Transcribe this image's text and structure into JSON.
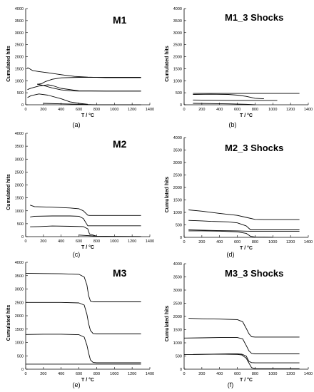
{
  "figure": {
    "panels": [
      {
        "letter": "(a)",
        "title": "M1"
      },
      {
        "letter": "(b)",
        "title": "M1_3 Shocks"
      },
      {
        "letter": "(c)",
        "title": "M2"
      },
      {
        "letter": "(d)",
        "title": "M2_3 Shocks"
      },
      {
        "letter": "(e)",
        "title": "M3"
      },
      {
        "letter": "(f)",
        "title": "M3_3 Shocks"
      }
    ]
  },
  "chart_data": [
    {
      "type": "line",
      "title": "M1",
      "panel_label": "(a)",
      "xlabel": "T / °C",
      "ylabel": "Cumulated hits",
      "xlim": [
        0,
        1400
      ],
      "ylim": [
        0,
        4000
      ],
      "xticks": [
        0,
        200,
        400,
        600,
        800,
        1000,
        1200,
        1400
      ],
      "yticks": [
        0,
        500,
        1000,
        1500,
        2000,
        2500,
        3000,
        3500,
        4000
      ],
      "grid": false,
      "series": [
        {
          "x": [
            20,
            80,
            150,
            250,
            400,
            550,
            700,
            900,
            1100,
            1300
          ],
          "y": [
            1550,
            1420,
            1380,
            1330,
            1250,
            1180,
            1150,
            1130,
            1130,
            1130
          ]
        },
        {
          "x": [
            130,
            180,
            220,
            300,
            400,
            600,
            900,
            1300
          ],
          "y": [
            850,
            880,
            960,
            1060,
            1120,
            1140,
            1140,
            1140
          ]
        },
        {
          "x": [
            20,
            60,
            150,
            250,
            300,
            400,
            600,
            900,
            1300
          ],
          "y": [
            630,
            690,
            780,
            830,
            800,
            680,
            580,
            570,
            570
          ]
        },
        {
          "x": [
            130,
            200,
            300,
            400,
            500,
            600,
            900,
            1300
          ],
          "y": [
            860,
            800,
            700,
            620,
            580,
            570,
            570,
            570
          ]
        },
        {
          "x": [
            20,
            60,
            150,
            250,
            400,
            500,
            600,
            700
          ],
          "y": [
            300,
            380,
            450,
            400,
            250,
            120,
            60,
            20
          ]
        },
        {
          "x": [
            200,
            400,
            600,
            800,
            1300
          ],
          "y": [
            60,
            40,
            20,
            0,
            0
          ]
        }
      ]
    },
    {
      "type": "line",
      "title": "M1_3 Shocks",
      "panel_label": "(b)",
      "xlabel": "T / °C",
      "ylabel": "Cumulated hits",
      "xlim": [
        0,
        1400
      ],
      "ylim": [
        0,
        4000
      ],
      "xticks": [
        0,
        200,
        400,
        600,
        800,
        1000,
        1200,
        1400
      ],
      "yticks": [
        0,
        500,
        1000,
        1500,
        2000,
        2500,
        3000,
        3500,
        4000
      ],
      "grid": false,
      "series": [
        {
          "x": [
            100,
            300,
            600,
            900,
            1300
          ],
          "y": [
            470,
            470,
            470,
            470,
            470
          ]
        },
        {
          "x": [
            100,
            300,
            500,
            600,
            700,
            800,
            900
          ],
          "y": [
            430,
            440,
            430,
            400,
            350,
            270,
            250
          ]
        },
        {
          "x": [
            100,
            300,
            500,
            700,
            900,
            1050
          ],
          "y": [
            200,
            190,
            185,
            180,
            180,
            180
          ]
        },
        {
          "x": [
            100,
            300,
            500,
            700,
            800
          ],
          "y": [
            60,
            50,
            40,
            20,
            0
          ]
        }
      ]
    },
    {
      "type": "line",
      "title": "M2",
      "panel_label": "(c)",
      "xlabel": "T / °C",
      "ylabel": "Cumulated hits",
      "xlim": [
        0,
        1400
      ],
      "ylim": [
        0,
        4000
      ],
      "xticks": [
        0,
        200,
        400,
        600,
        800,
        1000,
        1200,
        1400
      ],
      "yticks": [
        0,
        500,
        1000,
        1500,
        2000,
        2500,
        3000,
        3500,
        4000
      ],
      "grid": false,
      "series": [
        {
          "x": [
            50,
            100,
            300,
            500,
            600,
            650,
            680,
            700,
            720,
            750,
            800,
            1300
          ],
          "y": [
            1220,
            1160,
            1140,
            1110,
            1080,
            1000,
            900,
            830,
            820,
            820,
            820,
            820
          ]
        },
        {
          "x": [
            50,
            100,
            300,
            500,
            600,
            650,
            700,
            1300
          ],
          "y": [
            760,
            790,
            800,
            800,
            790,
            700,
            420,
            420
          ]
        },
        {
          "x": [
            50,
            150,
            300,
            500,
            650,
            700,
            720,
            800
          ],
          "y": [
            380,
            390,
            410,
            400,
            390,
            300,
            100,
            20
          ]
        },
        {
          "x": [
            600,
            700,
            800,
            1000,
            1300
          ],
          "y": [
            60,
            40,
            20,
            10,
            5
          ]
        }
      ]
    },
    {
      "type": "line",
      "title": "M2_3 Shocks",
      "panel_label": "(d)",
      "xlabel": "T / °C",
      "ylabel": "Cumulated hits",
      "xlim": [
        0,
        1400
      ],
      "ylim": [
        0,
        4000
      ],
      "xticks": [
        0,
        200,
        400,
        600,
        800,
        1000,
        1200,
        1400
      ],
      "yticks": [
        0,
        500,
        1000,
        1500,
        2000,
        2500,
        3000,
        3500,
        4000
      ],
      "grid": false,
      "series": [
        {
          "x": [
            50,
            200,
            400,
            600,
            700,
            800,
            900,
            1300
          ],
          "y": [
            1100,
            1050,
            960,
            880,
            800,
            720,
            710,
            710
          ]
        },
        {
          "x": [
            50,
            200,
            300,
            500,
            600,
            700,
            750,
            1300
          ],
          "y": [
            680,
            660,
            640,
            620,
            580,
            460,
            300,
            300
          ]
        },
        {
          "x": [
            50,
            200,
            400,
            600,
            700,
            800,
            1300
          ],
          "y": [
            300,
            290,
            270,
            260,
            250,
            240,
            240
          ]
        },
        {
          "x": [
            50,
            200,
            400,
            600,
            700,
            750,
            800,
            1000
          ],
          "y": [
            260,
            260,
            250,
            220,
            160,
            40,
            10,
            5
          ]
        }
      ]
    },
    {
      "type": "line",
      "title": "M3",
      "panel_label": "(e)",
      "xlabel": "T / °C",
      "ylabel": "Cumulated hits",
      "xlim": [
        0,
        1400
      ],
      "ylim": [
        0,
        4000
      ],
      "xticks": [
        0,
        200,
        400,
        600,
        800,
        1000,
        1200,
        1400
      ],
      "yticks": [
        0,
        500,
        1000,
        1500,
        2000,
        2500,
        3000,
        3500,
        4000
      ],
      "grid": false,
      "series": [
        {
          "x": [
            0,
            200,
            400,
            600,
            660,
            690,
            710,
            730,
            760,
            800,
            1300
          ],
          "y": [
            3590,
            3580,
            3570,
            3550,
            3450,
            3150,
            2750,
            2550,
            2520,
            2520,
            2520
          ]
        },
        {
          "x": [
            0,
            200,
            400,
            600,
            660,
            690,
            710,
            730,
            760,
            800,
            1300
          ],
          "y": [
            2500,
            2500,
            2500,
            2480,
            2400,
            2050,
            1700,
            1450,
            1330,
            1320,
            1320
          ]
        },
        {
          "x": [
            0,
            200,
            400,
            600,
            660,
            690,
            710,
            730,
            760,
            800,
            1300
          ],
          "y": [
            1300,
            1310,
            1310,
            1290,
            1200,
            900,
            600,
            350,
            250,
            240,
            240
          ]
        },
        {
          "x": [
            0,
            200,
            400,
            600,
            800,
            1300
          ],
          "y": [
            190,
            190,
            190,
            190,
            190,
            190
          ]
        }
      ]
    },
    {
      "type": "line",
      "title": "M3_3 Shocks",
      "panel_label": "(f)",
      "xlabel": "T / °C",
      "ylabel": "Cumulated hits",
      "xlim": [
        0,
        1400
      ],
      "ylim": [
        0,
        4000
      ],
      "xticks": [
        0,
        200,
        400,
        600,
        800,
        1000,
        1200,
        1400
      ],
      "yticks": [
        0,
        500,
        1000,
        1500,
        2000,
        2500,
        3000,
        3500,
        4000
      ],
      "grid": false,
      "series": [
        {
          "x": [
            50,
            200,
            400,
            600,
            660,
            700,
            730,
            760,
            800,
            1300
          ],
          "y": [
            1930,
            1910,
            1900,
            1880,
            1800,
            1550,
            1350,
            1230,
            1220,
            1220
          ]
        },
        {
          "x": [
            0,
            200,
            400,
            600,
            660,
            700,
            730,
            760,
            800,
            1300
          ],
          "y": [
            1180,
            1190,
            1200,
            1200,
            1150,
            900,
            700,
            600,
            580,
            580
          ]
        },
        {
          "x": [
            100,
            300,
            500,
            600,
            650,
            700,
            730,
            760,
            800,
            1300
          ],
          "y": [
            560,
            570,
            580,
            580,
            570,
            500,
            300,
            250,
            240,
            240
          ]
        },
        {
          "x": [
            0,
            200,
            400,
            600,
            650,
            700,
            730,
            760,
            800,
            1300
          ],
          "y": [
            550,
            560,
            570,
            560,
            540,
            420,
            240,
            60,
            20,
            20
          ]
        }
      ]
    }
  ]
}
